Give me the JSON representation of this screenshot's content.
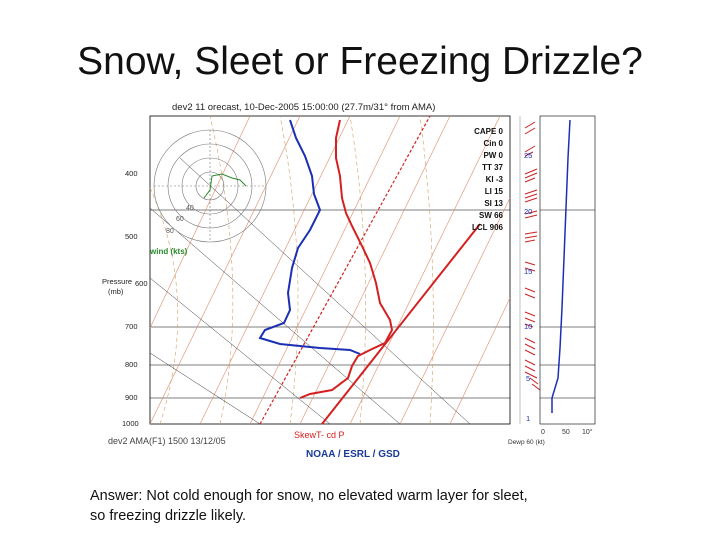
{
  "slide": {
    "title": "Snow, Sleet or Freezing Drizzle?",
    "answer_line1": "Answer: Not cold enough for snow, no elevated warm layer for sleet,",
    "answer_line2": "so freezing drizzle likely."
  },
  "figure": {
    "header": "dev2 11   orecast, 10-Dec-2005 15:00:00 (27.7m/31° from AMA)",
    "footer_left": "dev2 AMA(F1) 1500 13/12/05",
    "footer_skewt": "SkewT- cd P",
    "footer_brand": "NOAA / ESRL / GSD",
    "pressure_label_1": "Pressure",
    "pressure_label_2": "(mb)",
    "wind_label": "wind (kts)",
    "pressure_ticks": [
      "400",
      "500",
      "600",
      "700",
      "800",
      "900",
      "1000"
    ],
    "hodo_ring_labels": [
      "40",
      "60",
      "80"
    ],
    "indices": [
      "CAPE 0",
      "Cin 0",
      "PW 0",
      "TT 37",
      "KI -3",
      "LI 15",
      "SI 13",
      "SW 66",
      "LCL 906"
    ],
    "right_ticks": [
      "25",
      "20",
      "15",
      "10",
      "5",
      "1"
    ],
    "right_bottom_labels": [
      "0",
      "50",
      "10°"
    ],
    "right_axis_title": "Dewp 60 (kt)",
    "colors": {
      "temperature": "#d42020",
      "dewpoint": "#1a2fb5",
      "isotherm": "#e08a6a",
      "dry_adiabat": "#d0a060",
      "grid": "#000000",
      "brand": "#1a3a9a",
      "wind_barb": "#cc2222",
      "hodograph": "#2a8a2a"
    }
  }
}
